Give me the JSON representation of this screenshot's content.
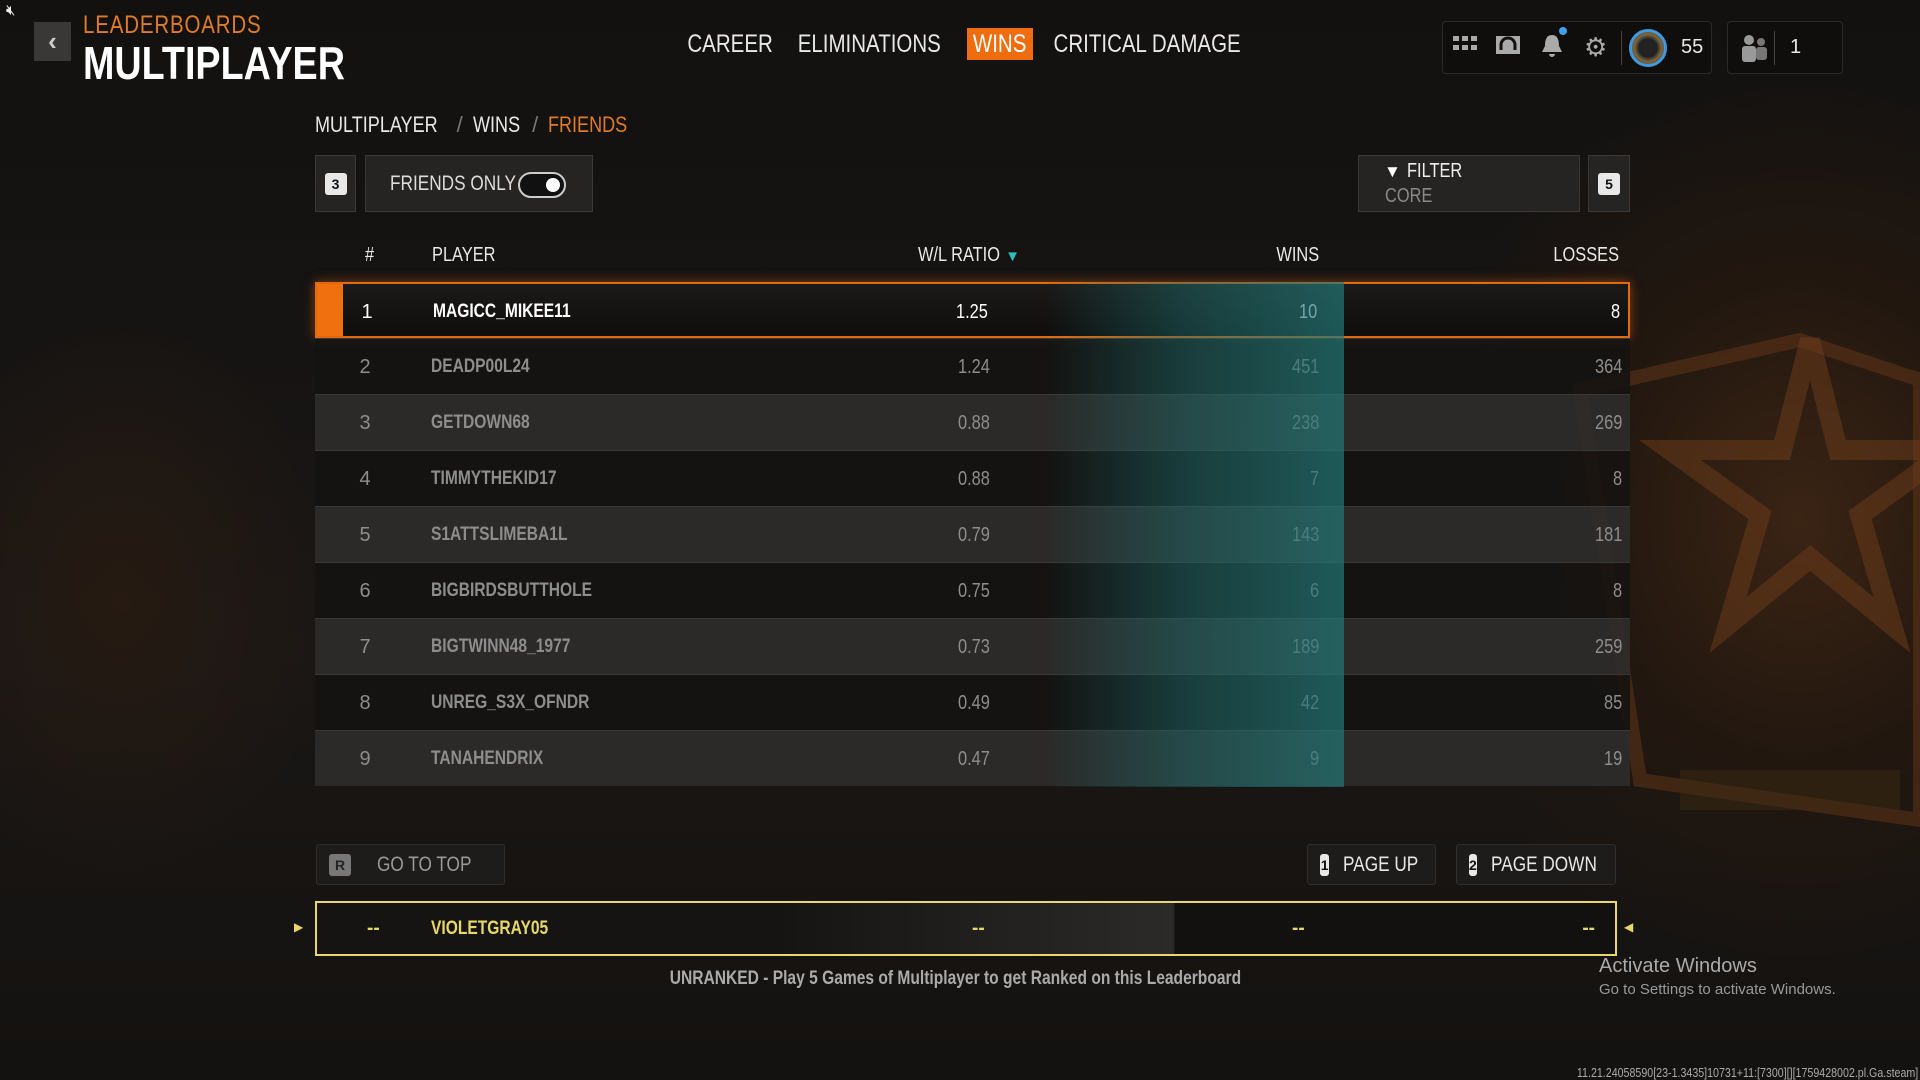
{
  "colors": {
    "accent": "#f06d0f",
    "teal": "#237876",
    "self_highlight": "#e8d86a"
  },
  "system": {
    "mute_icon": "speaker-muted-icon"
  },
  "header": {
    "back_icon": "chevron-left-icon",
    "section": "LEADERBOARDS",
    "title": "MULTIPLAYER"
  },
  "tabs": [
    {
      "label": "CAREER",
      "active": false
    },
    {
      "label": "ELIMINATIONS",
      "active": false
    },
    {
      "label": "WINS",
      "active": true
    },
    {
      "label": "CRITICAL DAMAGE",
      "active": false
    }
  ],
  "topbar": {
    "icons": [
      "grid-menu-icon",
      "headset-chat-icon",
      "bell-icon",
      "gear-icon"
    ],
    "notification_dot": true,
    "level": "55",
    "party_count": "1"
  },
  "breadcrumb": [
    "MULTIPLAYER",
    "WINS",
    "FRIENDS"
  ],
  "controls": {
    "left_key": "3",
    "friends_only_label": "FRIENDS ONLY",
    "friends_only_on": true,
    "filter_label": "FILTER",
    "filter_value": "CORE",
    "right_key": "5"
  },
  "table": {
    "columns": [
      "#",
      "PLAYER",
      "W/L RATIO",
      "WINS",
      "LOSSES"
    ],
    "sorted_column": "W/L RATIO",
    "sort_direction": "descending",
    "rows": [
      {
        "rank": "1",
        "player": "MAGICC_MIKEE11",
        "wl": "1.25",
        "wins": "10",
        "losses": "8",
        "selected": true
      },
      {
        "rank": "2",
        "player": "DEADP00L24",
        "wl": "1.24",
        "wins": "451",
        "losses": "364"
      },
      {
        "rank": "3",
        "player": "GETDOWN68",
        "wl": "0.88",
        "wins": "238",
        "losses": "269"
      },
      {
        "rank": "4",
        "player": "TIMMYTHEKID17",
        "wl": "0.88",
        "wins": "7",
        "losses": "8"
      },
      {
        "rank": "5",
        "player": "S1ATTSLIMEBA1L",
        "wl": "0.79",
        "wins": "143",
        "losses": "181"
      },
      {
        "rank": "6",
        "player": "BIGBIRDSBUTTHOLE",
        "wl": "0.75",
        "wins": "6",
        "losses": "8"
      },
      {
        "rank": "7",
        "player": "BIGTWINN48_1977",
        "wl": "0.73",
        "wins": "189",
        "losses": "259"
      },
      {
        "rank": "8",
        "player": "UNREG_S3X_OFNDR",
        "wl": "0.49",
        "wins": "42",
        "losses": "85"
      },
      {
        "rank": "9",
        "player": "TANAHENDRIX",
        "wl": "0.47",
        "wins": "9",
        "losses": "19"
      }
    ]
  },
  "buttons": {
    "top_key": "R",
    "top_label": "GO TO TOP",
    "up_key": "1",
    "up_label": "PAGE UP",
    "down_key": "2",
    "down_label": "PAGE DOWN"
  },
  "self_row": {
    "rank": "--",
    "player": "VIOLETGRAY05",
    "wl": "--",
    "wins": "--",
    "losses": "--"
  },
  "unranked_msg": "UNRANKED - Play 5 Games of Multiplayer to get Ranked on this Leaderboard",
  "watermark": {
    "line1": "Activate Windows",
    "line2": "Go to Settings to activate Windows."
  },
  "build": "11.21.24058590[23-1.3435]10731+11:[7300][][1759428002.pl.Ga.steam]"
}
